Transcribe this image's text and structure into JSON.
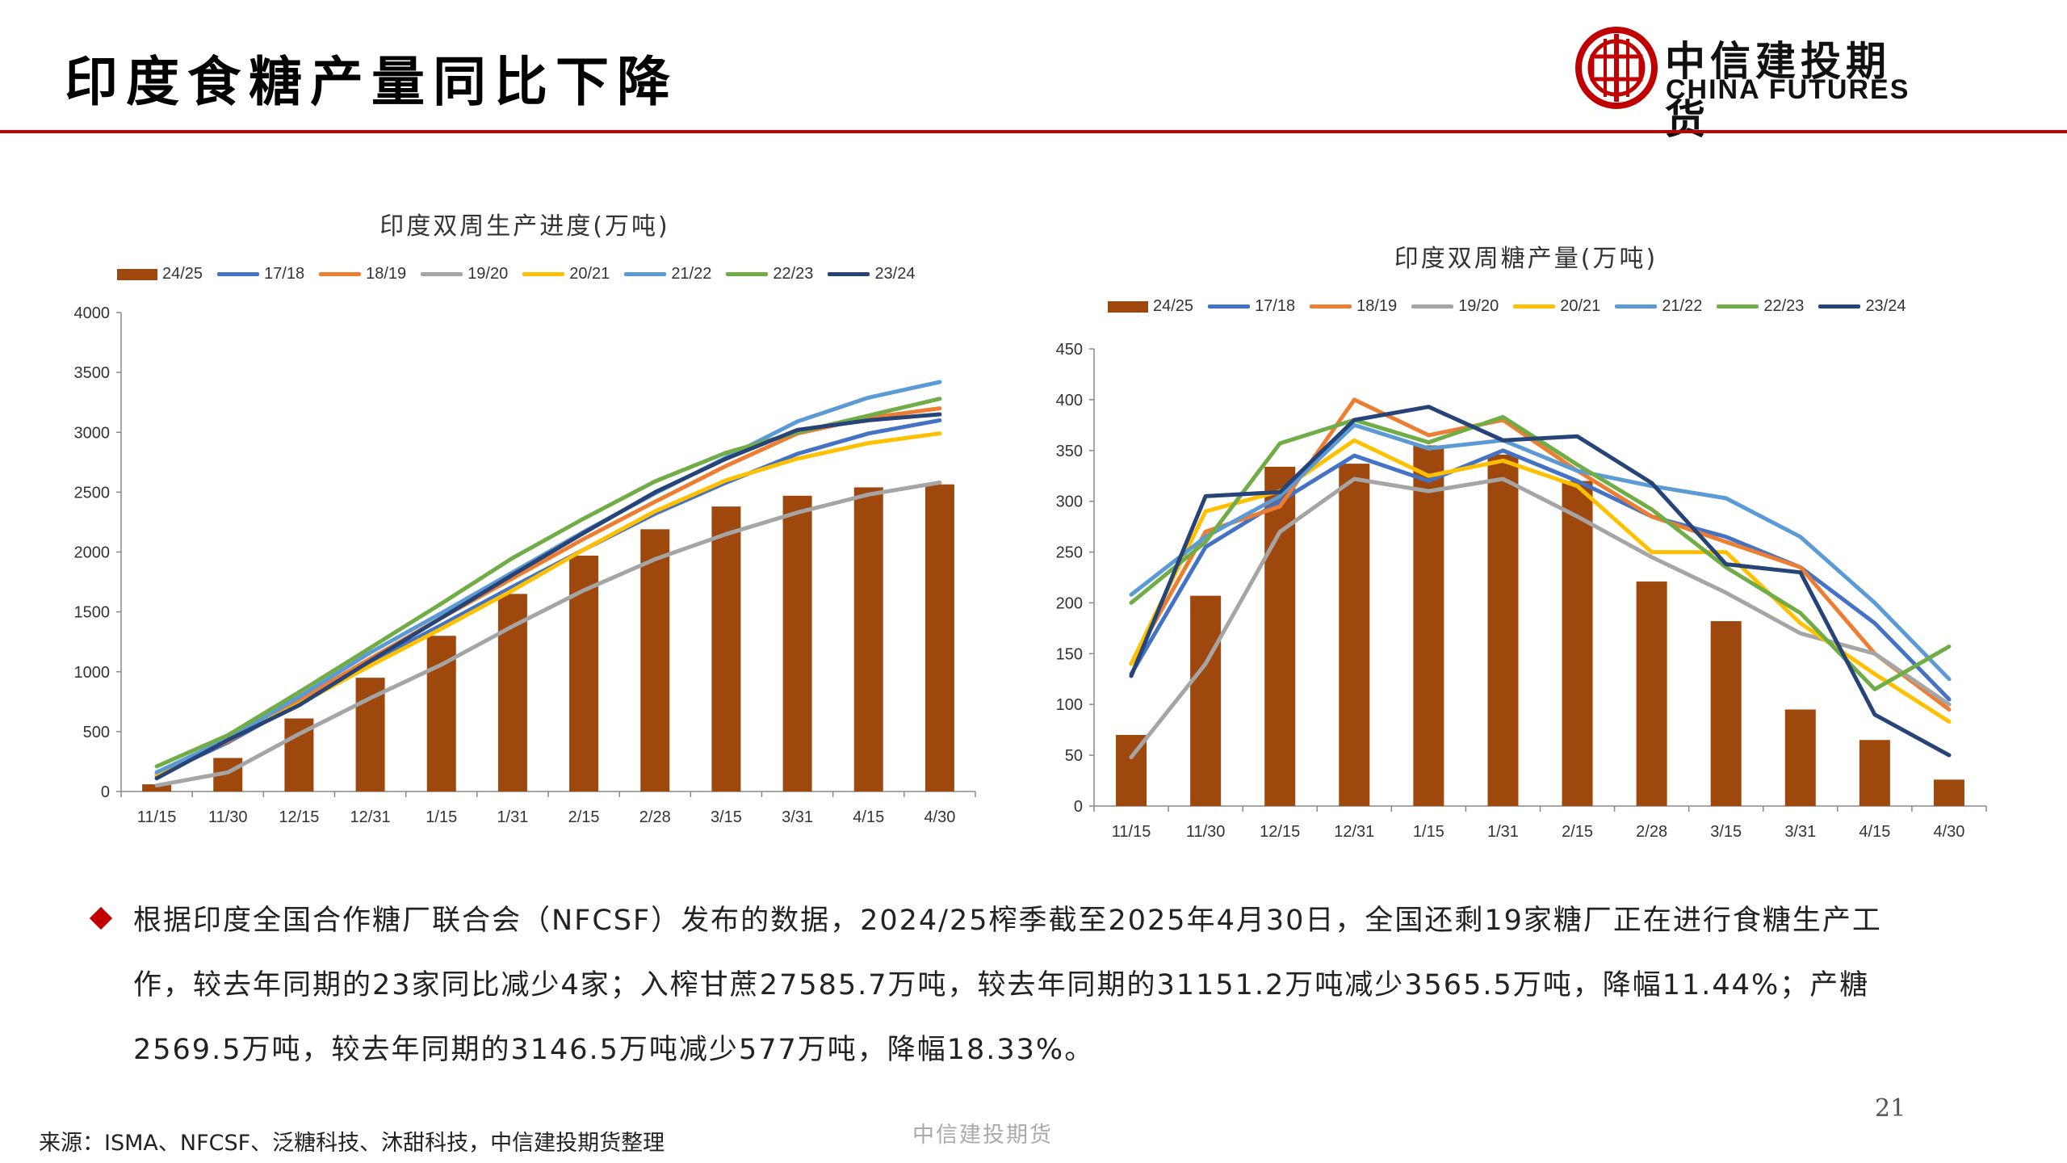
{
  "page": {
    "title": "印度食糖产量同比下降",
    "logo_cn": "中信建投期货",
    "logo_en": "CHINA FUTURES",
    "page_number": "21",
    "source": "来源：ISMA、NFCSF、泛糖科技、沐甜科技，中信建投期货整理",
    "footer": "中信建投期货",
    "paragraph": "根据印度全国合作糖厂联合会（NFCSF）发布的数据，2024/25榨季截至2025年4月30日，全国还剩19家糖厂正在进行食糖生产工作，较去年同期的23家同比减少4家；入榨甘蔗27585.7万吨，较去年同期的31151.2万吨减少3565.5万吨，降幅11.44%；产糖2569.5万吨，较去年同期的3146.5万吨减少577万吨，降幅18.33%。"
  },
  "colors": {
    "brand_red": "#c00000",
    "bar": "#9e480e",
    "17/18": "#4472c4",
    "18/19": "#ed7d31",
    "19/20": "#a5a5a5",
    "20/21": "#ffc000",
    "21/22": "#5b9bd5",
    "22/23": "#70ad47",
    "23/24": "#264478"
  },
  "chart_data": [
    {
      "type": "bar+line",
      "title": "印度双周生产进度(万吨)",
      "categories": [
        "11/15",
        "11/30",
        "12/15",
        "12/31",
        "1/15",
        "1/31",
        "2/15",
        "2/28",
        "3/15",
        "3/31",
        "4/15",
        "4/30"
      ],
      "ylim": [
        0,
        4000
      ],
      "yticks": [
        0,
        500,
        1000,
        1500,
        2000,
        2500,
        3000,
        3500,
        4000
      ],
      "bar_series": {
        "name": "24/25",
        "values": [
          60,
          280,
          610,
          950,
          1300,
          1650,
          1970,
          2190,
          2380,
          2470,
          2540,
          2565
        ]
      },
      "series": [
        {
          "name": "17/18",
          "values": [
            130,
            410,
            740,
            1080,
            1390,
            1710,
            2020,
            2320,
            2580,
            2820,
            2990,
            3100
          ]
        },
        {
          "name": "18/19",
          "values": [
            150,
            420,
            760,
            1110,
            1450,
            1780,
            2110,
            2420,
            2720,
            2990,
            3120,
            3200
          ]
        },
        {
          "name": "19/20",
          "values": [
            50,
            160,
            480,
            780,
            1060,
            1380,
            1680,
            1940,
            2150,
            2330,
            2480,
            2580
          ]
        },
        {
          "name": "20/21",
          "values": [
            140,
            430,
            730,
            1050,
            1360,
            1680,
            2020,
            2340,
            2600,
            2780,
            2910,
            2990
          ]
        },
        {
          "name": "21/22",
          "values": [
            160,
            440,
            790,
            1160,
            1490,
            1830,
            2170,
            2490,
            2790,
            3090,
            3290,
            3420
          ]
        },
        {
          "name": "22/23",
          "values": [
            210,
            470,
            830,
            1200,
            1570,
            1950,
            2280,
            2590,
            2830,
            3000,
            3140,
            3280
          ]
        },
        {
          "name": "23/24",
          "values": [
            110,
            430,
            720,
            1090,
            1450,
            1810,
            2160,
            2500,
            2780,
            3020,
            3100,
            3150
          ]
        }
      ]
    },
    {
      "type": "bar+line",
      "title": "印度双周糖产量(万吨)",
      "categories": [
        "11/15",
        "11/30",
        "12/15",
        "12/31",
        "1/15",
        "1/31",
        "2/15",
        "2/28",
        "3/15",
        "3/31",
        "4/15",
        "4/30"
      ],
      "ylim": [
        0,
        450
      ],
      "yticks": [
        0,
        50,
        100,
        150,
        200,
        250,
        300,
        350,
        400,
        450
      ],
      "bar_series": {
        "name": "24/25",
        "values": [
          70,
          207,
          334,
          337,
          355,
          346,
          320,
          221,
          182,
          95,
          65,
          26
        ]
      },
      "series": [
        {
          "name": "17/18",
          "values": [
            130,
            255,
            300,
            345,
            320,
            350,
            320,
            285,
            265,
            235,
            180,
            105
          ]
        },
        {
          "name": "18/19",
          "values": [
            140,
            270,
            295,
            400,
            365,
            380,
            330,
            285,
            260,
            235,
            150,
            95
          ]
        },
        {
          "name": "19/20",
          "values": [
            48,
            140,
            270,
            322,
            310,
            322,
            285,
            245,
            210,
            170,
            150,
            100
          ]
        },
        {
          "name": "20/21",
          "values": [
            140,
            290,
            310,
            360,
            325,
            340,
            315,
            250,
            250,
            180,
            130,
            83
          ]
        },
        {
          "name": "21/22",
          "values": [
            208,
            265,
            305,
            375,
            352,
            360,
            330,
            315,
            303,
            265,
            200,
            125
          ]
        },
        {
          "name": "22/23",
          "values": [
            200,
            260,
            357,
            380,
            358,
            383,
            336,
            292,
            235,
            190,
            115,
            157
          ]
        },
        {
          "name": "23/24",
          "values": [
            128,
            305,
            309,
            380,
            393,
            360,
            364,
            318,
            238,
            230,
            90,
            50
          ]
        }
      ]
    }
  ]
}
